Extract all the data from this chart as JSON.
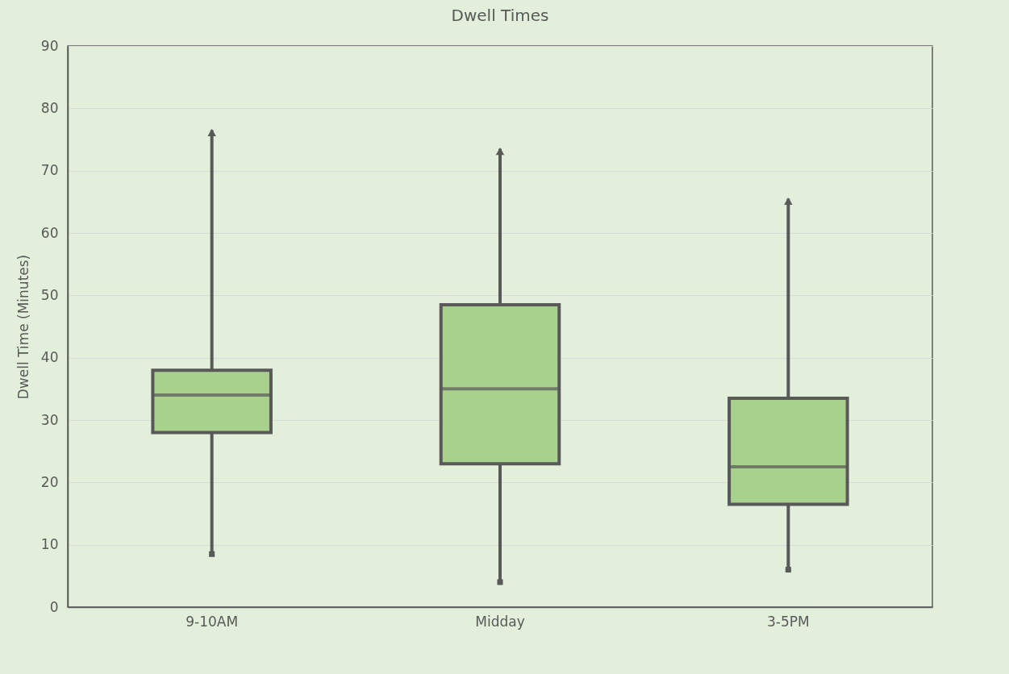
{
  "chart_data": {
    "type": "box",
    "title": "Dwell Times",
    "ylabel": "Dwell Time (Minutes)",
    "categories": [
      "9-10AM",
      "Midday",
      "3-5PM"
    ],
    "boxes": [
      {
        "low": 8.5,
        "q1": 28,
        "median": 34,
        "q3": 38,
        "high": 76.5
      },
      {
        "low": 4,
        "q1": 23,
        "median": 35,
        "q3": 48.5,
        "high": 73.5
      },
      {
        "low": 6,
        "q1": 16.5,
        "median": 22.5,
        "q3": 33.5,
        "high": 65.5
      }
    ],
    "color": "#a9d18e",
    "ylim": [
      0,
      90
    ],
    "yticks": [
      0,
      10,
      20,
      30,
      40,
      50,
      60,
      70,
      80,
      90
    ],
    "grid": "y"
  }
}
